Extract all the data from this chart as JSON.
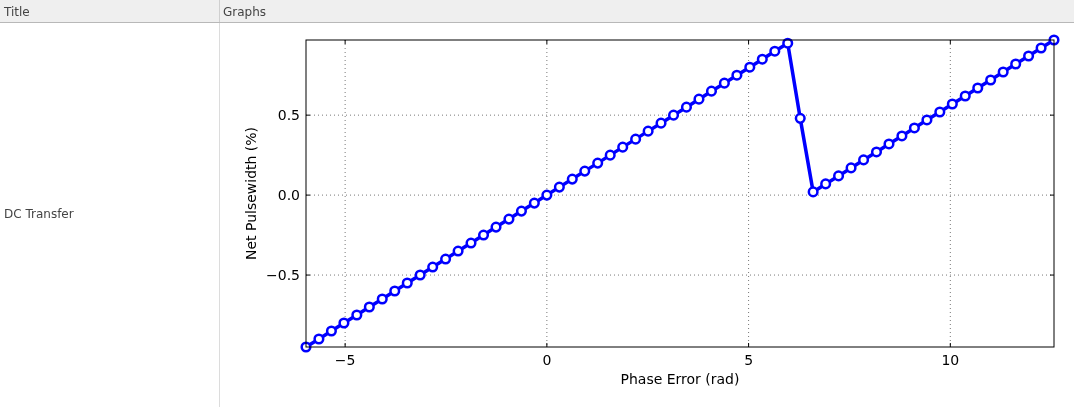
{
  "chart_data": {
    "type": "line",
    "xlabel": "Phase Error (rad)",
    "ylabel": "Net Pulsewidth (%)",
    "annotations": [
      "Title",
      "Graphs",
      "DC Transfer"
    ],
    "x": [
      -5.97,
      -5.65,
      -5.34,
      -5.03,
      -4.71,
      -4.4,
      -4.08,
      -3.77,
      -3.46,
      -3.14,
      -2.83,
      -2.51,
      -2.2,
      -1.88,
      -1.57,
      -1.26,
      -0.94,
      -0.63,
      -0.31,
      0,
      0.31,
      0.63,
      0.94,
      1.26,
      1.57,
      1.88,
      2.2,
      2.51,
      2.83,
      3.14,
      3.46,
      3.77,
      4.08,
      4.4,
      4.71,
      5.03,
      5.34,
      5.65,
      5.97,
      6.28,
      6.6,
      6.91,
      7.23,
      7.54,
      7.85,
      8.17,
      8.48,
      8.8,
      9.11,
      9.42,
      9.74,
      10.05,
      10.37,
      10.68,
      11.0,
      11.31,
      11.62,
      11.94,
      12.25,
      12.57
    ],
    "series": [
      {
        "color": "#0000ff",
        "values": [
          -0.95,
          -0.9,
          -0.85,
          -0.8,
          -0.75,
          -0.7,
          -0.65,
          -0.6,
          -0.55,
          -0.5,
          -0.45,
          -0.4,
          -0.35,
          -0.3,
          -0.25,
          -0.2,
          -0.15,
          -0.1,
          -0.05,
          0,
          0.05,
          0.1,
          0.15,
          0.2,
          0.25,
          0.3,
          0.35,
          0.4,
          0.45,
          0.5,
          0.55,
          0.6,
          0.65,
          0.7,
          0.75,
          0.8,
          0.85,
          0.9,
          0.95,
          0.48,
          0.02,
          0.07,
          0.12,
          0.17,
          0.22,
          0.27,
          0.32,
          0.37,
          0.42,
          0.47,
          0.52,
          0.57,
          0.62,
          0.67,
          0.72,
          0.77,
          0.82,
          0.87,
          0.92,
          0.97
        ]
      }
    ],
    "xlim": [
      -5.97,
      12.57
    ],
    "ylim": [
      -0.95,
      0.97
    ],
    "xticks": [
      {
        "value": -5,
        "label": "−5"
      },
      0,
      5,
      10
    ],
    "yticks": [
      {
        "value": -0.5,
        "label": "−0.5"
      },
      {
        "value": 0,
        "label": "0.0"
      },
      0.5
    ],
    "grid": true,
    "marker": "circle",
    "line_style": "solid"
  }
}
